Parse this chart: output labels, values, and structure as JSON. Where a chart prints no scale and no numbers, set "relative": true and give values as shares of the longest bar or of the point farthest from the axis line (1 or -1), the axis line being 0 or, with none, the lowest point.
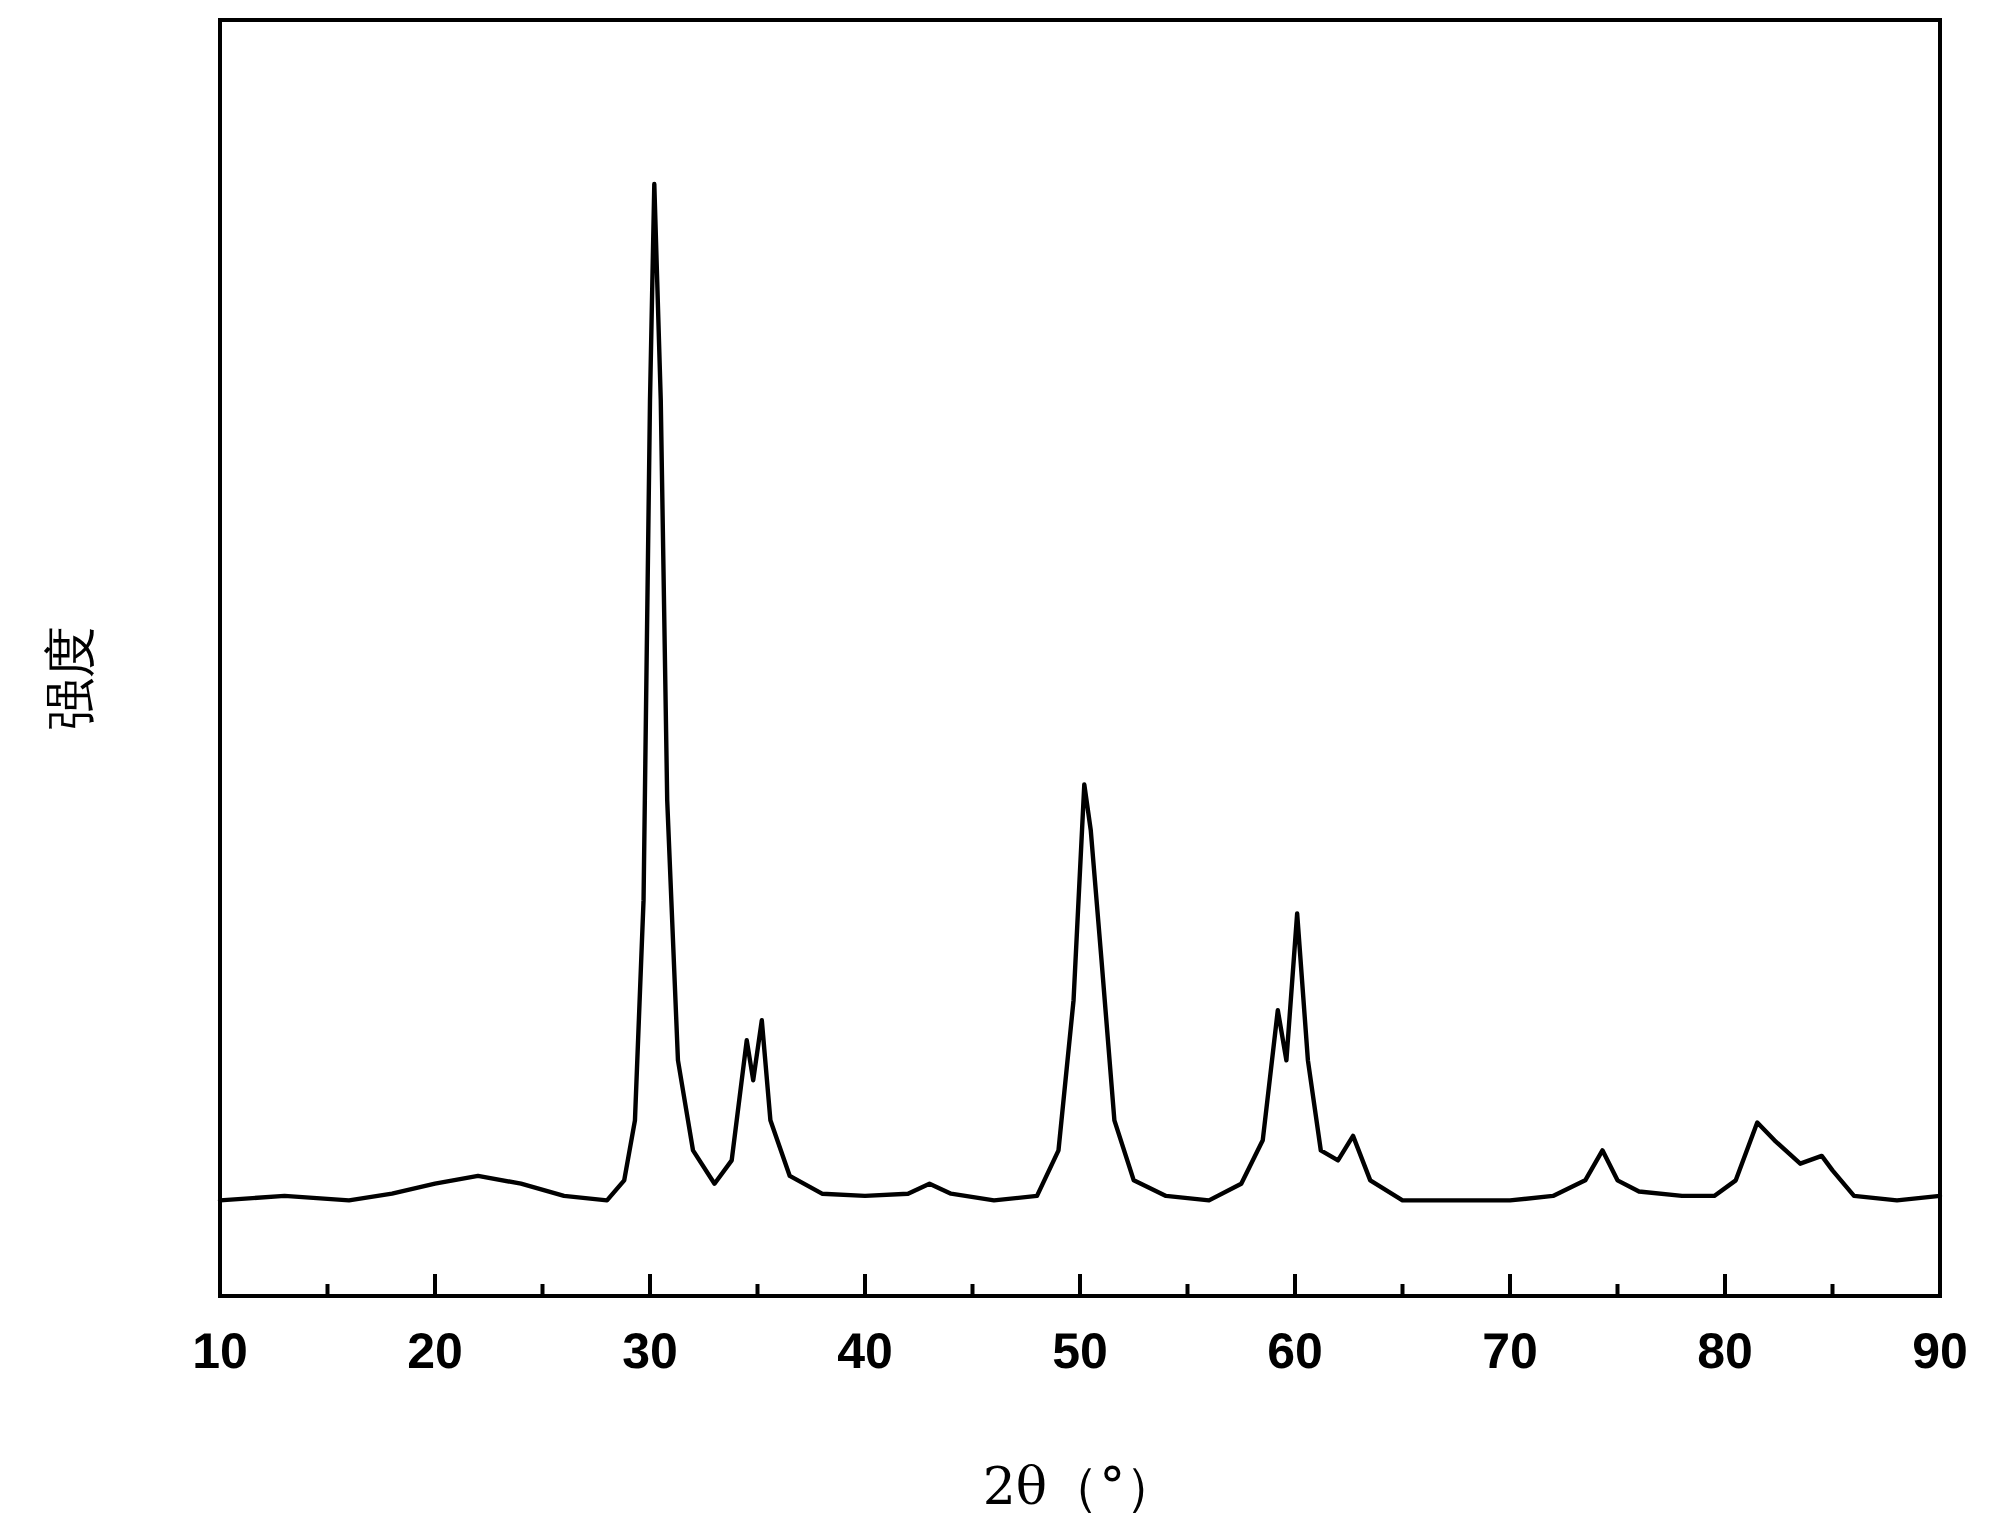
{
  "chart_data": {
    "type": "line",
    "xlabel": "2θ（°）",
    "ylabel": "强度",
    "relative": true,
    "xlim": [
      10,
      90
    ],
    "xticks": [
      10,
      {
        "value": 15,
        "label": null
      },
      20,
      {
        "value": 25,
        "label": null
      },
      30,
      {
        "value": 35,
        "label": null
      },
      40,
      {
        "value": 45,
        "label": null
      },
      50,
      {
        "value": 55,
        "label": null
      },
      60,
      {
        "value": 65,
        "label": null
      },
      70,
      {
        "value": 75,
        "label": null
      },
      80,
      {
        "value": 85,
        "label": null
      },
      90
    ],
    "color": "#000000",
    "x": [
      10,
      13,
      16,
      18,
      20,
      22,
      24,
      26,
      28,
      28.8,
      29.3,
      29.7,
      30,
      30.2,
      30.5,
      30.8,
      31.3,
      32,
      33,
      33.8,
      34.5,
      34.8,
      35.2,
      35.6,
      36.5,
      38,
      40,
      42,
      43,
      44,
      46,
      48,
      49,
      49.7,
      50.2,
      50.5,
      51,
      51.6,
      52.5,
      54,
      56,
      57.5,
      58.5,
      59.2,
      59.6,
      60.1,
      60.6,
      61.2,
      62,
      62.7,
      63.5,
      65,
      70,
      72,
      73.5,
      74.3,
      75,
      76,
      78,
      79.5,
      80.5,
      81.5,
      82.3,
      83.5,
      84.5,
      85,
      86,
      88,
      90
    ],
    "values": [
      0.086,
      0.09,
      0.086,
      0.092,
      0.101,
      0.108,
      0.101,
      0.09,
      0.086,
      0.104,
      0.158,
      0.356,
      0.806,
      1,
      0.806,
      0.446,
      0.212,
      0.131,
      0.101,
      0.122,
      0.23,
      0.194,
      0.248,
      0.158,
      0.108,
      0.092,
      0.09,
      0.092,
      0.101,
      0.092,
      0.086,
      0.09,
      0.131,
      0.266,
      0.46,
      0.419,
      0.302,
      0.158,
      0.104,
      0.09,
      0.086,
      0.101,
      0.14,
      0.257,
      0.212,
      0.344,
      0.212,
      0.131,
      0.122,
      0.144,
      0.104,
      0.086,
      0.086,
      0.09,
      0.104,
      0.131,
      0.104,
      0.094,
      0.09,
      0.09,
      0.104,
      0.156,
      0.14,
      0.119,
      0.126,
      0.113,
      0.09,
      0.086,
      0.09
    ]
  }
}
